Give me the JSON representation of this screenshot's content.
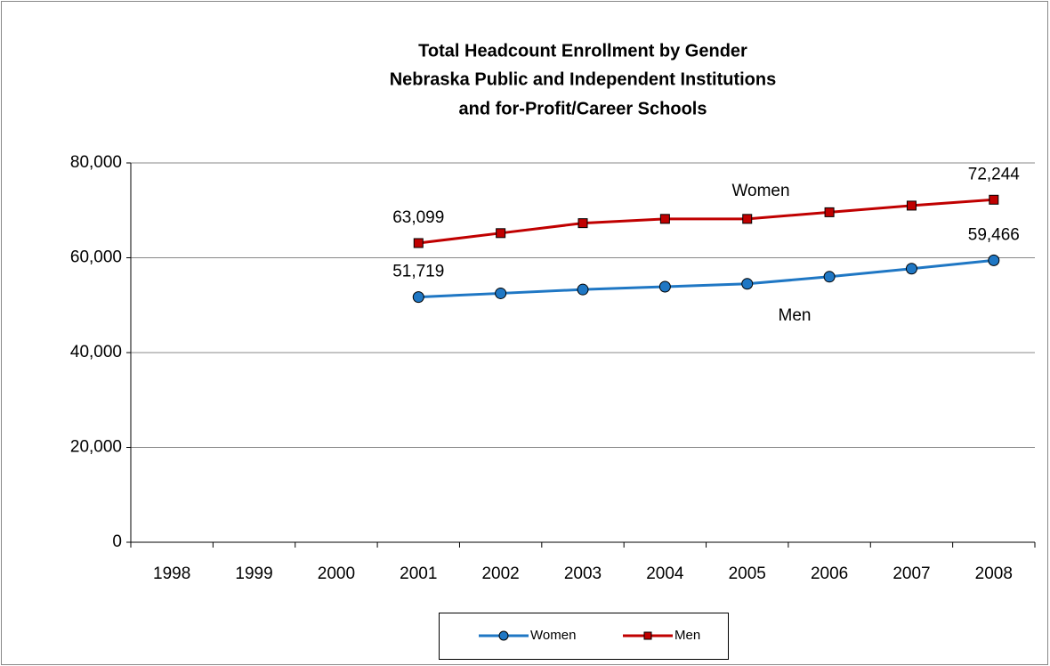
{
  "chart_data": {
    "type": "line",
    "title": [
      "Total Headcount Enrollment by Gender",
      "Nebraska Public and Independent Institutions",
      "and for-Profit/Career Schools"
    ],
    "categories": [
      "1998",
      "1999",
      "2000",
      "2001",
      "2002",
      "2003",
      "2004",
      "2005",
      "2006",
      "2007",
      "2008"
    ],
    "series": [
      {
        "name": "Women",
        "color": "#1f77c4",
        "marker": "circle",
        "values": [
          null,
          null,
          null,
          51719,
          52500,
          53300,
          53900,
          54500,
          56000,
          57700,
          59466
        ],
        "value_labels": [
          null,
          null,
          null,
          "51,719",
          null,
          null,
          null,
          null,
          null,
          null,
          "59,466"
        ]
      },
      {
        "name": "Men",
        "color": "#c00000",
        "marker": "square",
        "values": [
          null,
          null,
          null,
          63099,
          65200,
          67300,
          68200,
          68200,
          69600,
          71000,
          72244
        ],
        "value_labels": [
          null,
          null,
          null,
          "63,099",
          null,
          null,
          null,
          null,
          null,
          null,
          "72,244"
        ]
      }
    ],
    "annotations": [
      "Women",
      "Men"
    ],
    "ylim": [
      0,
      80000
    ],
    "yticks": [
      0,
      {
        "value": 20000,
        "label": "20,000"
      },
      {
        "value": 40000,
        "label": "40,000"
      },
      {
        "value": 60000,
        "label": "60,000"
      },
      {
        "value": 80000,
        "label": "80,000"
      }
    ],
    "grid": true,
    "legend": "bottom"
  }
}
